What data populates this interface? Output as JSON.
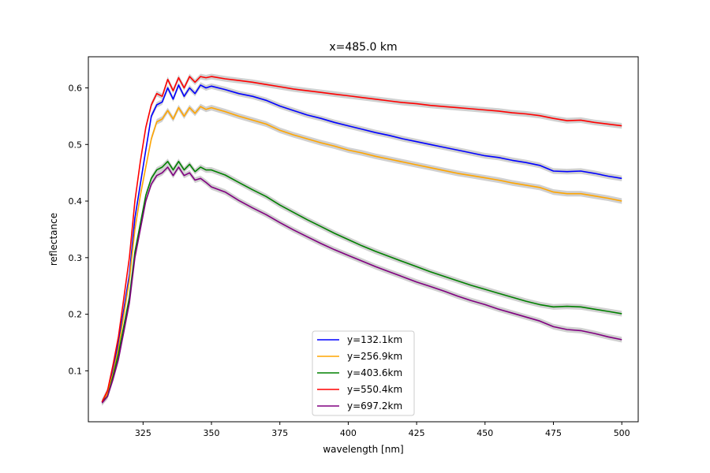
{
  "chart_data": {
    "type": "line",
    "title": "x=485.0 km",
    "xlabel": "wavelength [nm]",
    "ylabel": "reflectance",
    "xlim": [
      305,
      506
    ],
    "ylim": [
      0.01,
      0.655
    ],
    "xticks": [
      325,
      350,
      375,
      400,
      425,
      450,
      475,
      500
    ],
    "xtick_labels": [
      "325",
      "350",
      "375",
      "400",
      "425",
      "450",
      "475",
      "500"
    ],
    "yticks": [
      0.1,
      0.2,
      0.3,
      0.4,
      0.5,
      0.6
    ],
    "ytick_labels": [
      "0.1",
      "0.2",
      "0.3",
      "0.4",
      "0.5",
      "0.6"
    ],
    "grid": false,
    "legend_position": "bottom-center",
    "uncertainty_band_color": "#c8c8c8",
    "series": [
      {
        "name": "y=132.1km",
        "color": "#0000ff",
        "x": [
          310,
          312,
          314,
          316,
          318,
          320,
          322,
          324,
          326,
          328,
          330,
          332,
          334,
          336,
          338,
          340,
          342,
          344,
          346,
          348,
          350,
          355,
          360,
          365,
          370,
          375,
          380,
          385,
          390,
          395,
          400,
          405,
          410,
          415,
          420,
          425,
          430,
          435,
          440,
          445,
          450,
          455,
          460,
          465,
          470,
          475,
          480,
          485,
          490,
          495,
          500
        ],
        "y": [
          0.045,
          0.06,
          0.1,
          0.15,
          0.21,
          0.27,
          0.37,
          0.43,
          0.49,
          0.55,
          0.57,
          0.575,
          0.6,
          0.58,
          0.605,
          0.585,
          0.6,
          0.59,
          0.605,
          0.6,
          0.603,
          0.597,
          0.59,
          0.585,
          0.578,
          0.568,
          0.56,
          0.552,
          0.546,
          0.539,
          0.533,
          0.527,
          0.521,
          0.516,
          0.51,
          0.505,
          0.5,
          0.495,
          0.49,
          0.485,
          0.48,
          0.477,
          0.472,
          0.468,
          0.463,
          0.453,
          0.452,
          0.453,
          0.449,
          0.444,
          0.44
        ]
      },
      {
        "name": "y=256.9km",
        "color": "#ffa500",
        "x": [
          310,
          312,
          314,
          316,
          318,
          320,
          322,
          324,
          326,
          328,
          330,
          332,
          334,
          336,
          338,
          340,
          342,
          344,
          346,
          348,
          350,
          355,
          360,
          365,
          370,
          375,
          380,
          385,
          390,
          395,
          400,
          405,
          410,
          415,
          420,
          425,
          430,
          435,
          440,
          445,
          450,
          455,
          460,
          465,
          470,
          475,
          480,
          485,
          490,
          495,
          500
        ],
        "y": [
          0.045,
          0.06,
          0.095,
          0.14,
          0.2,
          0.26,
          0.35,
          0.41,
          0.46,
          0.51,
          0.54,
          0.545,
          0.56,
          0.545,
          0.565,
          0.55,
          0.565,
          0.555,
          0.567,
          0.562,
          0.565,
          0.558,
          0.55,
          0.543,
          0.536,
          0.525,
          0.517,
          0.51,
          0.503,
          0.497,
          0.49,
          0.485,
          0.479,
          0.474,
          0.469,
          0.464,
          0.459,
          0.454,
          0.449,
          0.445,
          0.441,
          0.437,
          0.432,
          0.428,
          0.424,
          0.416,
          0.413,
          0.413,
          0.409,
          0.405,
          0.4
        ]
      },
      {
        "name": "y=403.6km",
        "color": "#008000",
        "x": [
          310,
          312,
          314,
          316,
          318,
          320,
          322,
          324,
          326,
          328,
          330,
          332,
          334,
          336,
          338,
          340,
          342,
          344,
          346,
          348,
          350,
          355,
          360,
          365,
          370,
          375,
          380,
          385,
          390,
          395,
          400,
          405,
          410,
          415,
          420,
          425,
          430,
          435,
          440,
          445,
          450,
          455,
          460,
          465,
          470,
          475,
          480,
          485,
          490,
          495,
          500
        ],
        "y": [
          0.045,
          0.055,
          0.09,
          0.13,
          0.18,
          0.23,
          0.31,
          0.36,
          0.41,
          0.44,
          0.455,
          0.46,
          0.47,
          0.455,
          0.47,
          0.455,
          0.465,
          0.452,
          0.46,
          0.455,
          0.455,
          0.446,
          0.433,
          0.42,
          0.408,
          0.393,
          0.38,
          0.367,
          0.355,
          0.343,
          0.332,
          0.321,
          0.311,
          0.302,
          0.293,
          0.284,
          0.275,
          0.267,
          0.259,
          0.251,
          0.244,
          0.237,
          0.23,
          0.223,
          0.217,
          0.213,
          0.214,
          0.213,
          0.209,
          0.205,
          0.201
        ]
      },
      {
        "name": "y=550.4km",
        "color": "#ff0000",
        "x": [
          310,
          312,
          314,
          316,
          318,
          320,
          322,
          324,
          326,
          328,
          330,
          332,
          334,
          336,
          338,
          340,
          342,
          344,
          346,
          348,
          350,
          355,
          360,
          365,
          370,
          375,
          380,
          385,
          390,
          395,
          400,
          405,
          410,
          415,
          420,
          425,
          430,
          435,
          440,
          445,
          450,
          455,
          460,
          465,
          470,
          475,
          480,
          485,
          490,
          495,
          500
        ],
        "y": [
          0.045,
          0.065,
          0.11,
          0.16,
          0.23,
          0.3,
          0.4,
          0.47,
          0.53,
          0.57,
          0.59,
          0.585,
          0.615,
          0.595,
          0.618,
          0.6,
          0.62,
          0.61,
          0.62,
          0.618,
          0.62,
          0.616,
          0.613,
          0.61,
          0.606,
          0.602,
          0.598,
          0.595,
          0.592,
          0.589,
          0.586,
          0.583,
          0.58,
          0.577,
          0.574,
          0.572,
          0.569,
          0.567,
          0.565,
          0.563,
          0.561,
          0.559,
          0.556,
          0.554,
          0.551,
          0.546,
          0.542,
          0.543,
          0.539,
          0.536,
          0.533
        ]
      },
      {
        "name": "y=697.2km",
        "color": "#800080",
        "x": [
          310,
          312,
          314,
          316,
          318,
          320,
          322,
          324,
          326,
          328,
          330,
          332,
          334,
          336,
          338,
          340,
          342,
          344,
          346,
          348,
          350,
          355,
          360,
          365,
          370,
          375,
          380,
          385,
          390,
          395,
          400,
          405,
          410,
          415,
          420,
          425,
          430,
          435,
          440,
          445,
          450,
          455,
          460,
          465,
          470,
          475,
          480,
          485,
          490,
          495,
          500
        ],
        "y": [
          0.043,
          0.055,
          0.085,
          0.12,
          0.17,
          0.22,
          0.3,
          0.35,
          0.4,
          0.43,
          0.445,
          0.45,
          0.46,
          0.445,
          0.46,
          0.445,
          0.45,
          0.437,
          0.44,
          0.433,
          0.425,
          0.416,
          0.401,
          0.388,
          0.376,
          0.362,
          0.349,
          0.337,
          0.325,
          0.314,
          0.304,
          0.294,
          0.284,
          0.275,
          0.266,
          0.257,
          0.249,
          0.241,
          0.232,
          0.224,
          0.217,
          0.209,
          0.202,
          0.195,
          0.188,
          0.178,
          0.173,
          0.171,
          0.166,
          0.16,
          0.155
        ]
      }
    ]
  }
}
